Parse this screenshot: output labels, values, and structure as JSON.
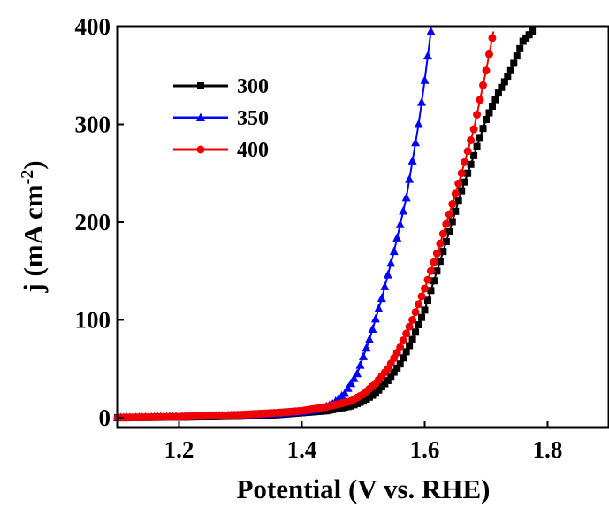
{
  "chart_data": {
    "type": "line",
    "xlabel": "Potential (V vs. RHE)",
    "ylabel": {
      "main": "j (mA cm",
      "superscript": "-2",
      "close": ")"
    },
    "xlim": [
      1.1,
      1.9
    ],
    "ylim": [
      -10,
      400
    ],
    "xticks": [
      {
        "value": 1.2,
        "label": "1.2"
      },
      {
        "value": 1.4,
        "label": "1.4"
      },
      {
        "value": 1.6,
        "label": "1.6"
      },
      {
        "value": 1.8,
        "label": "1.8"
      }
    ],
    "yticks": [
      {
        "value": 0,
        "label": "0"
      },
      {
        "value": 100,
        "label": "100"
      },
      {
        "value": 200,
        "label": "200"
      },
      {
        "value": 300,
        "label": "300"
      },
      {
        "value": 400,
        "label": "400"
      }
    ],
    "grid": false,
    "legend_position": "top-left",
    "series": [
      {
        "name": "300",
        "color": "#000000",
        "marker": "square",
        "points": [
          [
            1.1,
            0
          ],
          [
            1.2,
            0.5
          ],
          [
            1.3,
            1.5
          ],
          [
            1.36,
            3
          ],
          [
            1.4,
            5
          ],
          [
            1.44,
            7
          ],
          [
            1.48,
            12
          ],
          [
            1.5,
            17
          ],
          [
            1.52,
            25
          ],
          [
            1.54,
            38
          ],
          [
            1.56,
            55
          ],
          [
            1.58,
            80
          ],
          [
            1.6,
            110
          ],
          [
            1.62,
            150
          ],
          [
            1.64,
            190
          ],
          [
            1.66,
            232
          ],
          [
            1.68,
            268
          ],
          [
            1.7,
            305
          ],
          [
            1.72,
            332
          ],
          [
            1.74,
            355
          ],
          [
            1.76,
            385
          ],
          [
            1.775,
            395
          ]
        ]
      },
      {
        "name": "350",
        "color": "#0000ff",
        "marker": "triangle",
        "points": [
          [
            1.1,
            0
          ],
          [
            1.2,
            1
          ],
          [
            1.3,
            2.5
          ],
          [
            1.36,
            4
          ],
          [
            1.4,
            6
          ],
          [
            1.43,
            9
          ],
          [
            1.45,
            14
          ],
          [
            1.47,
            25
          ],
          [
            1.49,
            45
          ],
          [
            1.51,
            80
          ],
          [
            1.53,
            122
          ],
          [
            1.55,
            170
          ],
          [
            1.57,
            225
          ],
          [
            1.59,
            300
          ],
          [
            1.6,
            345
          ],
          [
            1.61,
            395
          ]
        ]
      },
      {
        "name": "400",
        "color": "#ee0000",
        "marker": "circle",
        "points": [
          [
            1.1,
            0
          ],
          [
            1.2,
            1
          ],
          [
            1.3,
            3
          ],
          [
            1.36,
            5
          ],
          [
            1.4,
            7
          ],
          [
            1.44,
            11
          ],
          [
            1.48,
            17
          ],
          [
            1.5,
            24
          ],
          [
            1.52,
            35
          ],
          [
            1.54,
            50
          ],
          [
            1.56,
            72
          ],
          [
            1.58,
            100
          ],
          [
            1.6,
            132
          ],
          [
            1.62,
            168
          ],
          [
            1.64,
            208
          ],
          [
            1.66,
            250
          ],
          [
            1.68,
            295
          ],
          [
            1.7,
            355
          ],
          [
            1.712,
            395
          ]
        ]
      }
    ]
  }
}
